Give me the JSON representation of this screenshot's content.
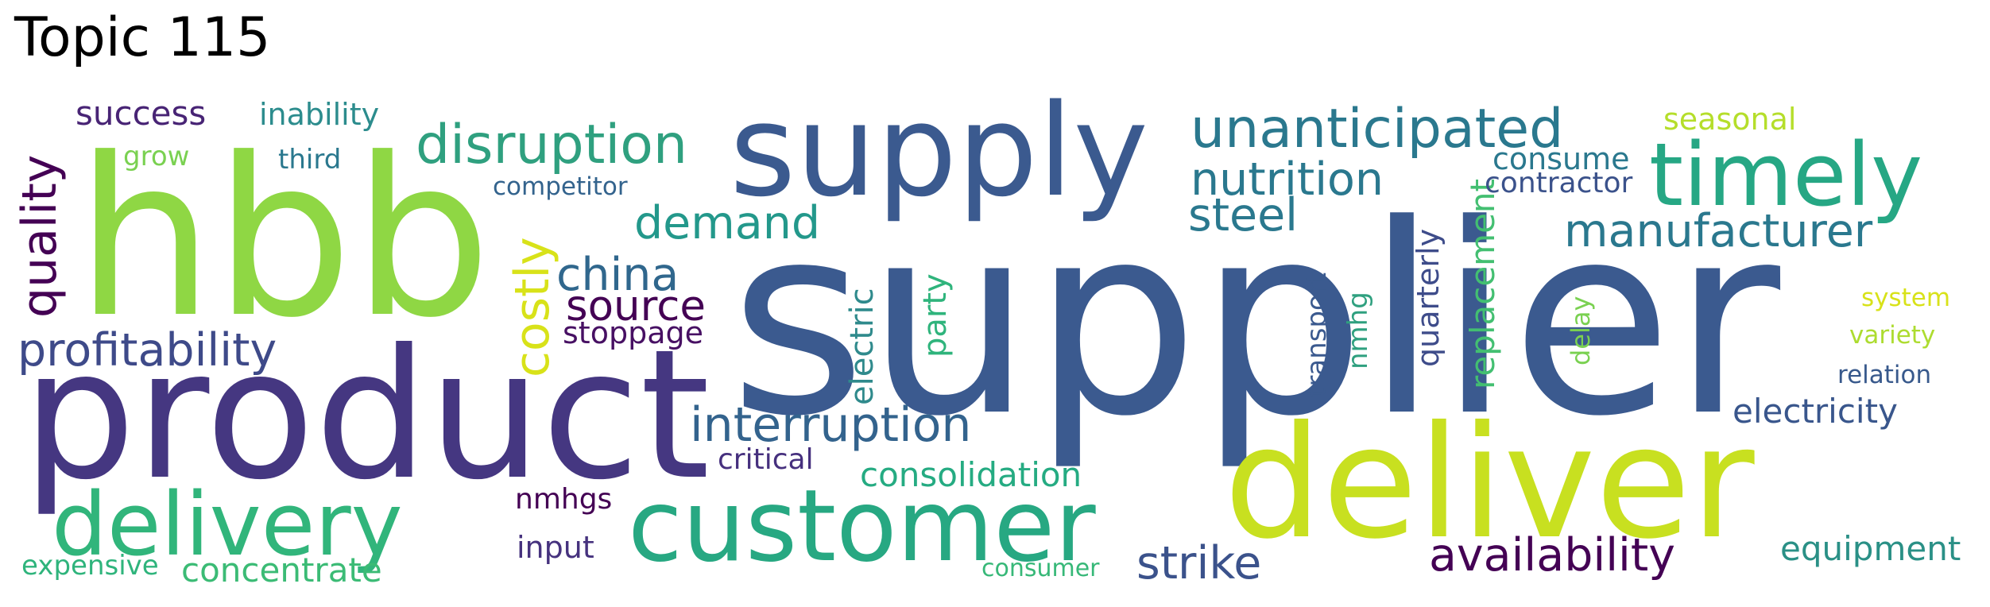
{
  "title": "Topic 115",
  "words": [
    {
      "text": "supplier",
      "color": "#3b5a8f"
    },
    {
      "text": "hbb",
      "color": "#8fd744"
    },
    {
      "text": "product",
      "color": "#453781"
    },
    {
      "text": "deliver",
      "color": "#c8e020"
    },
    {
      "text": "supply",
      "color": "#3b5a8f"
    },
    {
      "text": "customer",
      "color": "#27a882"
    },
    {
      "text": "delivery",
      "color": "#31b57b"
    },
    {
      "text": "timely",
      "color": "#26a784"
    },
    {
      "text": "unanticipated",
      "color": "#2a788e"
    },
    {
      "text": "disruption",
      "color": "#2fa07f"
    },
    {
      "text": "interruption",
      "color": "#33638d"
    },
    {
      "text": "profitability",
      "color": "#3e4a89"
    },
    {
      "text": "manufacturer",
      "color": "#2a788e"
    },
    {
      "text": "nutrition",
      "color": "#2a788e"
    },
    {
      "text": "availability",
      "color": "#440154"
    },
    {
      "text": "demand",
      "color": "#23988b"
    },
    {
      "text": "china",
      "color": "#30678d"
    },
    {
      "text": "source",
      "color": "#440154"
    },
    {
      "text": "quality",
      "color": "#440154"
    },
    {
      "text": "costly",
      "color": "#d8e219"
    },
    {
      "text": "steel",
      "color": "#2a788e"
    },
    {
      "text": "strike",
      "color": "#3b528b"
    },
    {
      "text": "consolidation",
      "color": "#25ab82"
    },
    {
      "text": "electricity",
      "color": "#39568c"
    },
    {
      "text": "equipment",
      "color": "#2a9086"
    },
    {
      "text": "concentrate",
      "color": "#3bbb75"
    },
    {
      "text": "success",
      "color": "#482475"
    },
    {
      "text": "replacement",
      "color": "#43bf71"
    },
    {
      "text": "consume",
      "color": "#2a788e"
    },
    {
      "text": "contractor",
      "color": "#3b528b"
    },
    {
      "text": "seasonal",
      "color": "#b5de2b"
    },
    {
      "text": "inability",
      "color": "#2c8c8d"
    },
    {
      "text": "stoppage",
      "color": "#471063"
    },
    {
      "text": "electric",
      "color": "#2f8a8c"
    },
    {
      "text": "party",
      "color": "#2fb47c"
    },
    {
      "text": "quarterly",
      "color": "#3e4c8a"
    },
    {
      "text": "input",
      "color": "#46327e"
    },
    {
      "text": "nmhgs",
      "color": "#440154"
    },
    {
      "text": "critical",
      "color": "#46307e"
    },
    {
      "text": "expensive",
      "color": "#2fb47c"
    },
    {
      "text": "transport",
      "color": "#3b5a8f"
    },
    {
      "text": "nmhg",
      "color": "#2fa07f"
    },
    {
      "text": "delay",
      "color": "#7ad151"
    },
    {
      "text": "grow",
      "color": "#7ad151"
    },
    {
      "text": "third",
      "color": "#2a788e"
    },
    {
      "text": "competitor",
      "color": "#33638d"
    },
    {
      "text": "system",
      "color": "#d8e219"
    },
    {
      "text": "variety",
      "color": "#addc30"
    },
    {
      "text": "relation",
      "color": "#38598c"
    },
    {
      "text": "consumer",
      "color": "#37b878"
    }
  ]
}
